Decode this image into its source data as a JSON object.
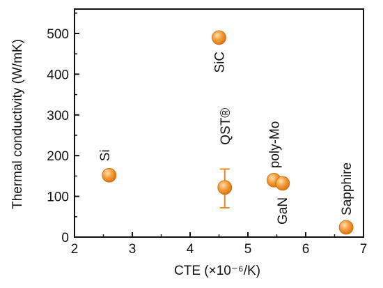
{
  "chart_data": {
    "type": "scatter",
    "xlabel": "CTE (×10⁻⁶/K)",
    "ylabel": "Thermal conductivity (W/mK)",
    "xlim": [
      2,
      7
    ],
    "ylim": [
      0,
      550
    ],
    "xticks": [
      "2",
      "3",
      "4",
      "5",
      "6",
      "7"
    ],
    "yticks": [
      "0",
      "100",
      "200",
      "300",
      "400",
      "500"
    ],
    "grid": false,
    "marker_color": "#F08A1C",
    "points": [
      {
        "label": "Si",
        "x": 2.6,
        "y": 152
      },
      {
        "label": "SiC",
        "x": 4.5,
        "y": 490
      },
      {
        "label": "QST®",
        "x": 4.6,
        "y": 122,
        "y_err_low": 72,
        "y_err_high": 167
      },
      {
        "label": "poly-Mo",
        "x": 5.45,
        "y": 140
      },
      {
        "label": "GaN",
        "x": 5.6,
        "y": 132
      },
      {
        "label": "Sapphire",
        "x": 6.7,
        "y": 24
      }
    ]
  }
}
